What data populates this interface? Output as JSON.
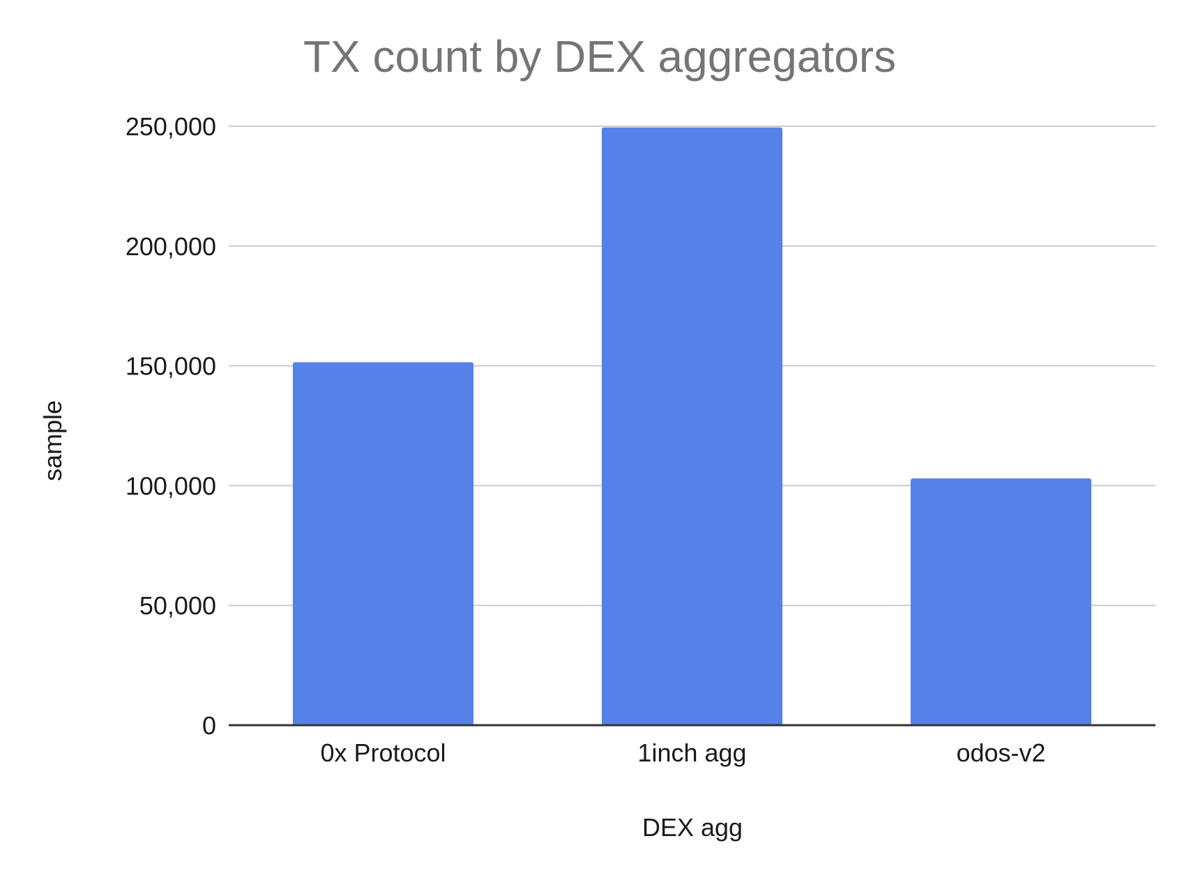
{
  "chart_data": {
    "type": "bar",
    "title": "TX count by DEX aggregators",
    "xlabel": "DEX agg",
    "ylabel": "sample",
    "categories": [
      "0x Protocol",
      "1inch agg",
      "odos-v2"
    ],
    "values": [
      151500,
      249500,
      103000
    ],
    "ylim": [
      0,
      250000
    ],
    "yticks": [
      0,
      50000,
      100000,
      150000,
      200000,
      250000
    ],
    "ytick_labels": [
      "0",
      "50,000",
      "100,000",
      "150,000",
      "200,000",
      "250,000"
    ],
    "grid": true,
    "legend": "none",
    "bar_color": "#5581e8"
  }
}
